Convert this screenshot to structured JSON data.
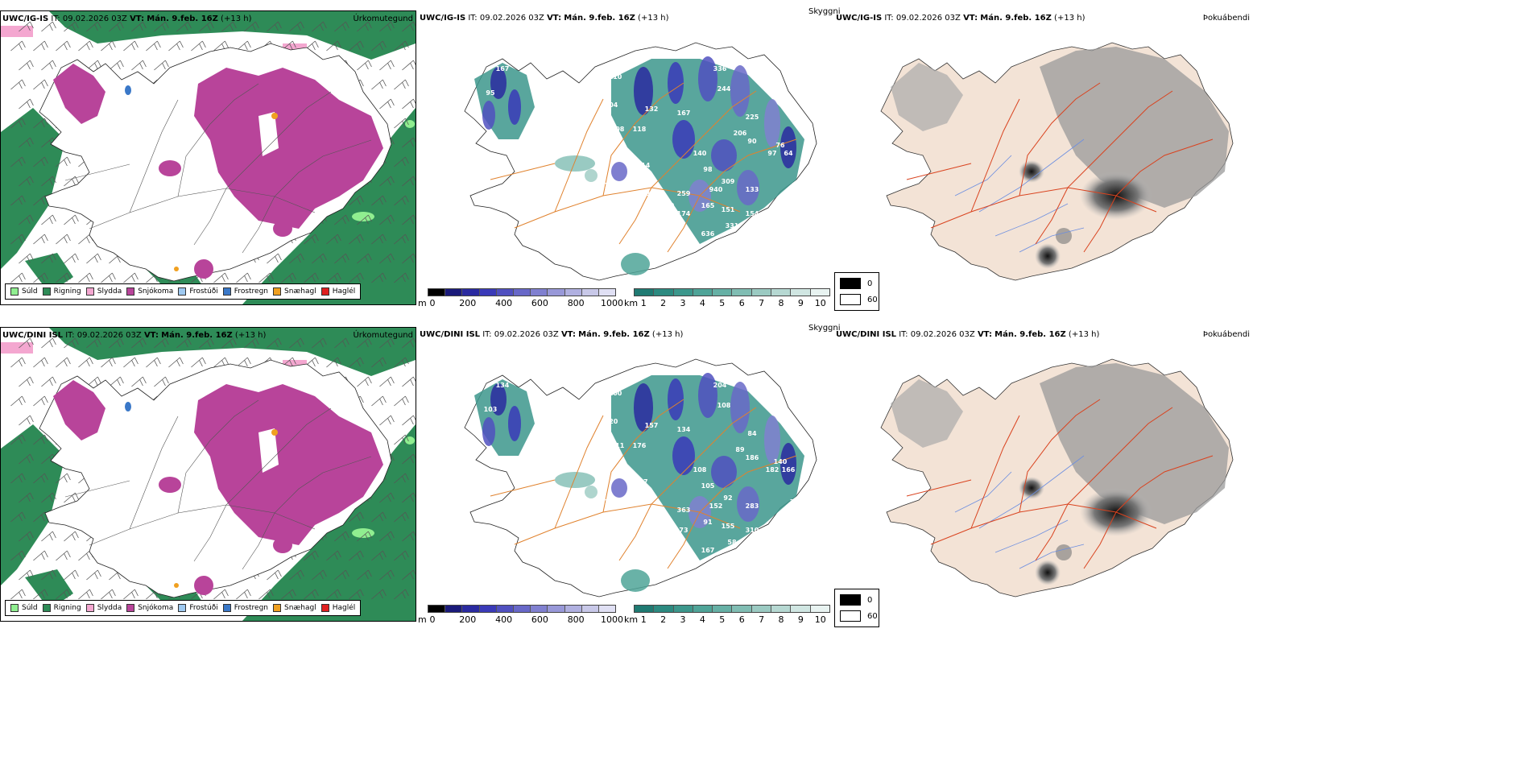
{
  "rows": [
    {
      "model": "UWC/IG-IS",
      "it_label": "IT:",
      "it_value": "09.02.2026 03Z",
      "vt_label": "VT:",
      "vt_value": "Mán. 9.feb. 16Z",
      "lead": "(+13 h)",
      "labels": [
        {
          "text": "167"
        },
        {
          "text": "81"
        },
        {
          "text": "95"
        },
        {
          "text": "104"
        },
        {
          "text": "110"
        },
        {
          "text": "108"
        },
        {
          "text": "118"
        },
        {
          "text": "132"
        },
        {
          "text": "167"
        },
        {
          "text": "336"
        },
        {
          "text": "244"
        },
        {
          "text": "225"
        },
        {
          "text": "206"
        },
        {
          "text": "76"
        },
        {
          "text": "64"
        },
        {
          "text": "90"
        },
        {
          "text": "97"
        },
        {
          "text": "140"
        },
        {
          "text": "71"
        },
        {
          "text": "214"
        },
        {
          "text": "98"
        },
        {
          "text": "309"
        },
        {
          "text": "50"
        },
        {
          "text": "133"
        },
        {
          "text": "259"
        },
        {
          "text": "940"
        },
        {
          "text": "138"
        },
        {
          "text": "103"
        },
        {
          "text": "140"
        },
        {
          "text": "174"
        },
        {
          "text": "165"
        },
        {
          "text": "151"
        },
        {
          "text": "154"
        },
        {
          "text": "331"
        },
        {
          "text": "59"
        },
        {
          "text": "636"
        },
        {
          "text": "176"
        },
        {
          "text": "540"
        },
        {
          "text": "139"
        }
      ]
    },
    {
      "model": "UWC/DINI ISL",
      "it_label": "IT:",
      "it_value": "09.02.2026 03Z",
      "vt_label": "VT:",
      "vt_value": "Mán. 9.feb. 16Z",
      "lead": "(+13 h)",
      "labels": [
        {
          "text": "134"
        },
        {
          "text": "151"
        },
        {
          "text": "103"
        },
        {
          "text": "120"
        },
        {
          "text": "100"
        },
        {
          "text": "111"
        },
        {
          "text": "176"
        },
        {
          "text": "157"
        },
        {
          "text": "134"
        },
        {
          "text": "204"
        },
        {
          "text": "108"
        },
        {
          "text": "84"
        },
        {
          "text": "89"
        },
        {
          "text": "140"
        },
        {
          "text": "166"
        },
        {
          "text": "186"
        },
        {
          "text": "182"
        },
        {
          "text": "108"
        },
        {
          "text": "315"
        },
        {
          "text": "87"
        },
        {
          "text": "105"
        },
        {
          "text": "92"
        },
        {
          "text": "303"
        },
        {
          "text": "283"
        },
        {
          "text": "363"
        },
        {
          "text": "152"
        },
        {
          "text": "145"
        },
        {
          "text": "94"
        },
        {
          "text": "92"
        },
        {
          "text": "73"
        },
        {
          "text": "91"
        },
        {
          "text": "155"
        },
        {
          "text": "310"
        },
        {
          "text": "58"
        },
        {
          "text": "600"
        },
        {
          "text": "167"
        },
        {
          "text": "108"
        },
        {
          "text": "103"
        },
        {
          "text": "142"
        }
      ]
    }
  ],
  "panel_types": {
    "precip": "Úrkomutegund",
    "cloud": "Skyggni",
    "fog": "Þokuábendi"
  },
  "precip_legend": [
    {
      "label": "Súld",
      "color": "#90ee90"
    },
    {
      "label": "Rigning",
      "color": "#2e8b57"
    },
    {
      "label": "Slydda",
      "color": "#f4a7d0"
    },
    {
      "label": "Snjókoma",
      "color": "#b8449a"
    },
    {
      "label": "Frostúði",
      "color": "#9ec9f0"
    },
    {
      "label": "Frostregn",
      "color": "#3a78c8"
    },
    {
      "label": "Snæhagl",
      "color": "#f0a020"
    },
    {
      "label": "Haglél",
      "color": "#e02020"
    }
  ],
  "ceiling_bar": {
    "unit": "m",
    "ticks": [
      "0",
      "200",
      "400",
      "600",
      "800",
      "1000"
    ],
    "colors": [
      "#000000",
      "#1a1a7a",
      "#2a2aa0",
      "#3a3ab8",
      "#5050c0",
      "#6868c8",
      "#8080d0",
      "#9898d8",
      "#b0b0e0",
      "#c8c8e8",
      "#e0e0f4"
    ]
  },
  "visibility_bar": {
    "unit": "km",
    "ticks": [
      "1",
      "2",
      "3",
      "4",
      "5",
      "6",
      "7",
      "8",
      "9",
      "10"
    ],
    "colors": [
      "#1f7a72",
      "#2c8a80",
      "#3c978c",
      "#4fa498",
      "#66b0a5",
      "#80bdb3",
      "#9bcac2",
      "#b6d8d2",
      "#d0e6e2",
      "#e8f3f1"
    ]
  },
  "fog_legend": [
    {
      "value": "0",
      "color": "#000000"
    },
    {
      "value": "60",
      "color": "#ffffff"
    }
  ]
}
